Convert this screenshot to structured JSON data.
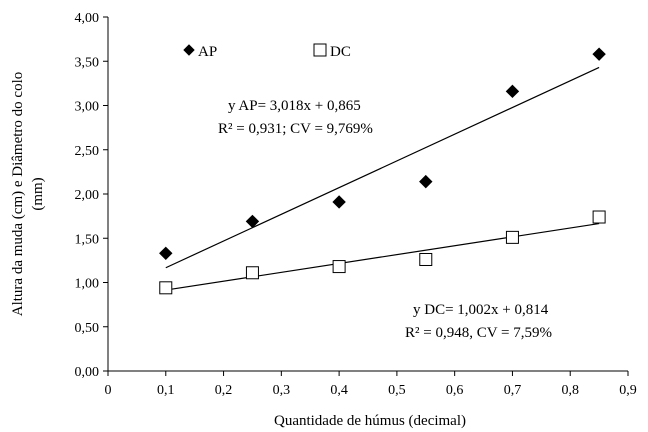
{
  "chart_data": {
    "type": "scatter",
    "title": "",
    "xlabel": "Quantidade de húmus (decimal)",
    "ylabel_lines": [
      "Altura da muda (cm) e Diâmetro do colo",
      "(mm)"
    ],
    "xlim": [
      0,
      0.9
    ],
    "ylim": [
      0,
      4
    ],
    "x_ticks": [
      0,
      0.1,
      0.2,
      0.3,
      0.4,
      0.5,
      0.6,
      0.7,
      0.8,
      0.9
    ],
    "x_tick_labels": [
      "0",
      "0,1",
      "0,2",
      "0,3",
      "0,4",
      "0,5",
      "0,6",
      "0,7",
      "0,8",
      "0,9"
    ],
    "y_ticks": [
      0,
      0.5,
      1,
      1.5,
      2,
      2.5,
      3,
      3.5,
      4
    ],
    "y_tick_labels": [
      "0,00",
      "0,50",
      "1,00",
      "1,50",
      "2,00",
      "2,50",
      "3,00",
      "3,50",
      "4,00"
    ],
    "grid": false,
    "legend_position": "top-left",
    "series": [
      {
        "name": "AP",
        "marker": "diamond-filled",
        "x": [
          0.1,
          0.25,
          0.4,
          0.55,
          0.7,
          0.85
        ],
        "y": [
          1.33,
          1.69,
          1.91,
          2.14,
          3.16,
          3.58
        ],
        "trendline": {
          "slope": 3.018,
          "intercept": 0.865,
          "x_range": [
            0.1,
            0.85
          ]
        },
        "equation_lines": [
          "y AP= 3,018x + 0,865",
          "R² = 0,931; CV = 9,769%"
        ]
      },
      {
        "name": "DC",
        "marker": "square-open",
        "x": [
          0.1,
          0.25,
          0.4,
          0.55,
          0.7,
          0.85
        ],
        "y": [
          0.94,
          1.11,
          1.18,
          1.26,
          1.51,
          1.74
        ],
        "trendline": {
          "slope": 1.002,
          "intercept": 0.814,
          "x_range": [
            0.1,
            0.85
          ]
        },
        "equation_lines": [
          "y DC= 1,002x + 0,814",
          "R² = 0,948, CV = 7,59%"
        ]
      }
    ]
  }
}
